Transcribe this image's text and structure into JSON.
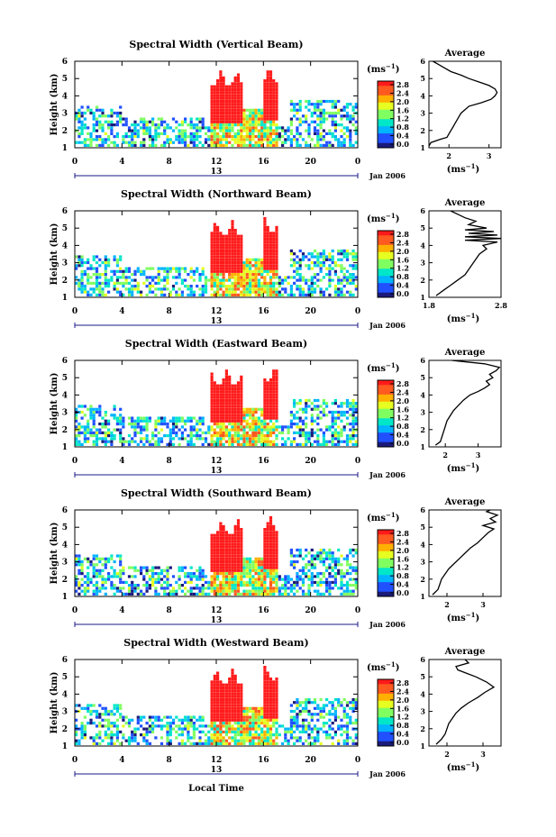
{
  "panels": [
    {
      "title": "Spectral Width (Vertical Beam)",
      "avg_title": "Average",
      "avg_xticks": [
        "2",
        "3"
      ],
      "avg_xrange": [
        1.5,
        3.3
      ],
      "avg_profile": [
        [
          1.1,
          1.3
        ],
        [
          1.3,
          1.55
        ],
        [
          1.5,
          1.8
        ],
        [
          1.6,
          1.95
        ],
        [
          1.8,
          2.0
        ],
        [
          2.0,
          2.05
        ],
        [
          2.2,
          2.1
        ],
        [
          2.4,
          2.15
        ],
        [
          2.6,
          2.2
        ],
        [
          2.8,
          2.25
        ],
        [
          3.0,
          2.3
        ],
        [
          3.2,
          2.4
        ],
        [
          3.4,
          2.5
        ],
        [
          3.6,
          2.8
        ],
        [
          3.8,
          3.05
        ],
        [
          4.0,
          3.15
        ],
        [
          4.2,
          3.2
        ],
        [
          4.4,
          3.15
        ],
        [
          4.6,
          3.0
        ],
        [
          4.8,
          2.75
        ],
        [
          5.0,
          2.5
        ],
        [
          5.2,
          2.3
        ],
        [
          5.4,
          2.05
        ],
        [
          5.6,
          1.9
        ],
        [
          5.8,
          1.75
        ],
        [
          6.0,
          1.6
        ]
      ]
    },
    {
      "title": "Spectral Width (Northward Beam)",
      "avg_title": "Average",
      "avg_xticks": [
        "1.8",
        "2.8"
      ],
      "avg_xrange": [
        1.8,
        2.8
      ],
      "avg_profile": [
        [
          1.1,
          1.9
        ],
        [
          1.4,
          2.0
        ],
        [
          1.7,
          2.1
        ],
        [
          2.0,
          2.2
        ],
        [
          2.3,
          2.3
        ],
        [
          2.6,
          2.35
        ],
        [
          2.9,
          2.4
        ],
        [
          3.2,
          2.45
        ],
        [
          3.5,
          2.5
        ],
        [
          3.8,
          2.6
        ],
        [
          4.0,
          2.55
        ],
        [
          4.2,
          2.75
        ],
        [
          4.3,
          2.3
        ],
        [
          4.4,
          2.8
        ],
        [
          4.5,
          2.3
        ],
        [
          4.6,
          2.75
        ],
        [
          4.7,
          2.35
        ],
        [
          4.8,
          2.7
        ],
        [
          4.9,
          2.3
        ],
        [
          5.0,
          2.6
        ],
        [
          5.2,
          2.35
        ],
        [
          5.4,
          2.45
        ],
        [
          5.6,
          2.3
        ],
        [
          5.8,
          2.2
        ],
        [
          6.0,
          2.1
        ]
      ]
    },
    {
      "title": "Spectral Width (Eastward Beam)",
      "avg_title": "Average",
      "avg_xticks": [
        "2",
        "3"
      ],
      "avg_xrange": [
        1.5,
        3.7
      ],
      "avg_profile": [
        [
          1.1,
          1.7
        ],
        [
          1.3,
          1.85
        ],
        [
          1.6,
          1.9
        ],
        [
          1.9,
          1.95
        ],
        [
          2.2,
          2.0
        ],
        [
          2.5,
          2.05
        ],
        [
          2.8,
          2.15
        ],
        [
          3.1,
          2.25
        ],
        [
          3.4,
          2.4
        ],
        [
          3.7,
          2.55
        ],
        [
          4.0,
          2.75
        ],
        [
          4.2,
          3.0
        ],
        [
          4.4,
          3.2
        ],
        [
          4.6,
          3.35
        ],
        [
          4.8,
          3.25
        ],
        [
          5.0,
          3.45
        ],
        [
          5.2,
          3.35
        ],
        [
          5.4,
          3.55
        ],
        [
          5.6,
          3.65
        ],
        [
          5.8,
          3.2
        ],
        [
          6.0,
          2.2
        ]
      ]
    },
    {
      "title": "Spectral Width (Southward Beam)",
      "avg_title": "Average",
      "avg_xticks": [
        "2",
        "3"
      ],
      "avg_xrange": [
        1.5,
        3.5
      ],
      "avg_profile": [
        [
          1.1,
          1.6
        ],
        [
          1.4,
          1.75
        ],
        [
          1.7,
          1.8
        ],
        [
          2.0,
          1.85
        ],
        [
          2.3,
          1.95
        ],
        [
          2.6,
          2.05
        ],
        [
          2.9,
          2.2
        ],
        [
          3.2,
          2.35
        ],
        [
          3.5,
          2.5
        ],
        [
          3.8,
          2.65
        ],
        [
          4.1,
          2.85
        ],
        [
          4.4,
          3.0
        ],
        [
          4.7,
          3.15
        ],
        [
          4.9,
          3.3
        ],
        [
          5.1,
          3.0
        ],
        [
          5.3,
          3.35
        ],
        [
          5.5,
          3.2
        ],
        [
          5.7,
          3.4
        ],
        [
          5.9,
          3.1
        ],
        [
          6.0,
          3.2
        ]
      ]
    },
    {
      "title": "Spectral Width (Westward Beam)",
      "avg_title": "Average",
      "avg_xticks": [
        "2",
        "3"
      ],
      "avg_xrange": [
        1.5,
        3.5
      ],
      "avg_profile": [
        [
          1.1,
          1.7
        ],
        [
          1.4,
          1.85
        ],
        [
          1.7,
          1.95
        ],
        [
          2.0,
          2.0
        ],
        [
          2.3,
          2.05
        ],
        [
          2.6,
          2.15
        ],
        [
          2.9,
          2.25
        ],
        [
          3.2,
          2.4
        ],
        [
          3.5,
          2.6
        ],
        [
          3.8,
          2.85
        ],
        [
          4.1,
          3.05
        ],
        [
          4.4,
          3.3
        ],
        [
          4.7,
          3.1
        ],
        [
          5.0,
          2.8
        ],
        [
          5.2,
          2.55
        ],
        [
          5.4,
          2.3
        ],
        [
          5.6,
          2.25
        ],
        [
          5.8,
          2.6
        ],
        [
          6.0,
          2.5
        ]
      ]
    }
  ],
  "shared": {
    "ylabel": "Height (km)",
    "yticks": [
      "1",
      "2",
      "3",
      "4",
      "5",
      "6"
    ],
    "xticks": [
      "0",
      "4",
      "8",
      "12",
      "16",
      "20",
      "0"
    ],
    "day_label": "13",
    "date_label": "Jan 2006",
    "unit_label_base": "(ms",
    "unit_label_exp": "−1",
    "unit_label_close": ")",
    "colorbar_ticks": [
      "2.8",
      "2.4",
      "2.0",
      "1.6",
      "1.2",
      "0.8",
      "0.4",
      "0.0"
    ],
    "xlabel": "Local Time"
  },
  "chart_data": {
    "type": "heatmap",
    "time_ticks_hours": [
      0,
      4,
      8,
      12,
      16,
      20,
      24
    ],
    "height_range_km": [
      1,
      6
    ],
    "colorbar_range": [
      0.0,
      2.8
    ],
    "colormap": [
      "#1a1a7a",
      "#2050ff",
      "#00b4ff",
      "#00e6c8",
      "#80ff60",
      "#e6ff20",
      "#ffb000",
      "#ff5a20",
      "#ff1a1a"
    ],
    "strong_regions": [
      {
        "hours": [
          11.5,
          14.0
        ],
        "height_km": [
          2.3,
          5.4
        ],
        "value_approx": 2.8
      },
      {
        "hours": [
          15.8,
          17.2
        ],
        "height_km": [
          2.5,
          5.6
        ],
        "value_approx": 2.8
      }
    ]
  }
}
